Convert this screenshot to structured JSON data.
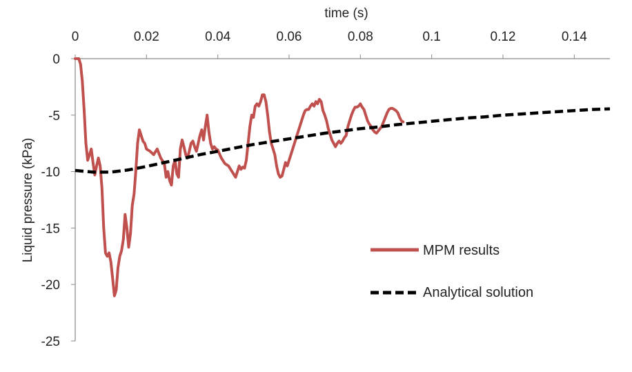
{
  "chart_data": {
    "type": "line",
    "title": "",
    "xlabel": "time (s)",
    "ylabel": "Liquid pressure (kPa)",
    "xlim": [
      0,
      0.15
    ],
    "ylim": [
      -25,
      0
    ],
    "x_ticks": [
      0,
      0.02,
      0.04,
      0.06,
      0.08,
      0.1,
      0.12,
      0.14
    ],
    "x_tick_labels": [
      "0",
      "0.02",
      "0.04",
      "0.06",
      "0.08",
      "0.1",
      "0.12",
      "0.14"
    ],
    "y_ticks": [
      0,
      -5,
      -10,
      -15,
      -20,
      -25
    ],
    "y_tick_labels": [
      "0",
      "-5",
      "-10",
      "-15",
      "-20",
      "-25"
    ],
    "x_axis_position": "top",
    "grid": false,
    "legend_position": "lower-right",
    "series": [
      {
        "name": "MPM results",
        "color": "#c0504d",
        "style": "solid",
        "points": [
          [
            0,
            0
          ],
          [
            0.001,
            0
          ],
          [
            0.0015,
            -0.5
          ],
          [
            0.002,
            -2
          ],
          [
            0.0025,
            -4.5
          ],
          [
            0.003,
            -7.5
          ],
          [
            0.0035,
            -9
          ],
          [
            0.004,
            -8.5
          ],
          [
            0.0045,
            -8
          ],
          [
            0.005,
            -9.2
          ],
          [
            0.0055,
            -10.3
          ],
          [
            0.006,
            -9.5
          ],
          [
            0.0065,
            -8.8
          ],
          [
            0.007,
            -9.5
          ],
          [
            0.0075,
            -11.5
          ],
          [
            0.008,
            -15
          ],
          [
            0.0085,
            -17.2
          ],
          [
            0.009,
            -17.5
          ],
          [
            0.0095,
            -17.2
          ],
          [
            0.01,
            -18
          ],
          [
            0.0105,
            -19.5
          ],
          [
            0.011,
            -21
          ],
          [
            0.0115,
            -20.5
          ],
          [
            0.012,
            -18.5
          ],
          [
            0.0125,
            -17.5
          ],
          [
            0.013,
            -17
          ],
          [
            0.0135,
            -16
          ],
          [
            0.014,
            -13.8
          ],
          [
            0.0145,
            -15
          ],
          [
            0.015,
            -16.7
          ],
          [
            0.0155,
            -15.5
          ],
          [
            0.016,
            -13
          ],
          [
            0.0165,
            -12
          ],
          [
            0.017,
            -10
          ],
          [
            0.0175,
            -7.5
          ],
          [
            0.018,
            -6.3
          ],
          [
            0.0185,
            -6.8
          ],
          [
            0.019,
            -7.3
          ],
          [
            0.0195,
            -7.5
          ],
          [
            0.02,
            -8
          ],
          [
            0.021,
            -8.2
          ],
          [
            0.022,
            -8.5
          ],
          [
            0.023,
            -8
          ],
          [
            0.024,
            -8.8
          ],
          [
            0.025,
            -9.3
          ],
          [
            0.0255,
            -10.5
          ],
          [
            0.026,
            -10
          ],
          [
            0.0265,
            -10.8
          ],
          [
            0.027,
            -11.2
          ],
          [
            0.0275,
            -9.5
          ],
          [
            0.028,
            -9
          ],
          [
            0.0285,
            -10.2
          ],
          [
            0.029,
            -10.5
          ],
          [
            0.0295,
            -8
          ],
          [
            0.03,
            -7.2
          ],
          [
            0.0305,
            -7.8
          ],
          [
            0.031,
            -8.5
          ],
          [
            0.0315,
            -8.8
          ],
          [
            0.032,
            -8.2
          ],
          [
            0.0325,
            -7.5
          ],
          [
            0.033,
            -7.3
          ],
          [
            0.0335,
            -7.8
          ],
          [
            0.034,
            -8.2
          ],
          [
            0.0345,
            -7.5
          ],
          [
            0.035,
            -6.8
          ],
          [
            0.0355,
            -6.3
          ],
          [
            0.036,
            -7.2
          ],
          [
            0.0365,
            -6
          ],
          [
            0.037,
            -5
          ],
          [
            0.0375,
            -6.5
          ],
          [
            0.038,
            -7.5
          ],
          [
            0.0385,
            -8
          ],
          [
            0.039,
            -7.8
          ],
          [
            0.0395,
            -8
          ],
          [
            0.04,
            -8.1
          ],
          [
            0.041,
            -8.8
          ],
          [
            0.042,
            -9.3
          ],
          [
            0.043,
            -9.5
          ],
          [
            0.044,
            -10
          ],
          [
            0.045,
            -10.5
          ],
          [
            0.0455,
            -10
          ],
          [
            0.046,
            -9.5
          ],
          [
            0.0465,
            -9.8
          ],
          [
            0.047,
            -9.6
          ],
          [
            0.0475,
            -9.7
          ],
          [
            0.048,
            -9
          ],
          [
            0.0485,
            -7.5
          ],
          [
            0.049,
            -6
          ],
          [
            0.0495,
            -5
          ],
          [
            0.05,
            -5.2
          ],
          [
            0.0505,
            -4.2
          ],
          [
            0.051,
            -4
          ],
          [
            0.0515,
            -4.2
          ],
          [
            0.052,
            -3.8
          ],
          [
            0.0525,
            -3.2
          ],
          [
            0.053,
            -3.2
          ],
          [
            0.0535,
            -3.8
          ],
          [
            0.054,
            -5
          ],
          [
            0.0545,
            -6.5
          ],
          [
            0.055,
            -7.5
          ],
          [
            0.0555,
            -8
          ],
          [
            0.056,
            -8.5
          ],
          [
            0.0565,
            -9.5
          ],
          [
            0.057,
            -10.2
          ],
          [
            0.0575,
            -10.5
          ],
          [
            0.058,
            -10.4
          ],
          [
            0.0585,
            -9.8
          ],
          [
            0.059,
            -9.2
          ],
          [
            0.0595,
            -9.5
          ],
          [
            0.06,
            -9
          ],
          [
            0.0605,
            -8.5
          ],
          [
            0.061,
            -8
          ],
          [
            0.0615,
            -7.5
          ],
          [
            0.062,
            -7
          ],
          [
            0.0625,
            -6.5
          ],
          [
            0.063,
            -6
          ],
          [
            0.0635,
            -5.5
          ],
          [
            0.064,
            -5
          ],
          [
            0.0645,
            -4.6
          ],
          [
            0.065,
            -4.5
          ],
          [
            0.0655,
            -4.5
          ],
          [
            0.066,
            -4.2
          ],
          [
            0.0665,
            -4
          ],
          [
            0.067,
            -4.2
          ],
          [
            0.0675,
            -3.8
          ],
          [
            0.068,
            -4
          ],
          [
            0.0685,
            -3.6
          ],
          [
            0.069,
            -3.8
          ],
          [
            0.0695,
            -4.6
          ],
          [
            0.07,
            -5
          ],
          [
            0.0705,
            -5.5
          ],
          [
            0.071,
            -6.2
          ],
          [
            0.0715,
            -6.7
          ],
          [
            0.072,
            -7.2
          ],
          [
            0.0725,
            -7.5
          ],
          [
            0.073,
            -7.8
          ],
          [
            0.0735,
            -7.5
          ],
          [
            0.074,
            -7.3
          ],
          [
            0.0745,
            -7.5
          ],
          [
            0.075,
            -7.3
          ],
          [
            0.0755,
            -7
          ],
          [
            0.076,
            -6.8
          ],
          [
            0.0765,
            -6
          ],
          [
            0.077,
            -5.5
          ],
          [
            0.0775,
            -5
          ],
          [
            0.078,
            -4.6
          ],
          [
            0.0785,
            -4.3
          ],
          [
            0.079,
            -4.3
          ],
          [
            0.0795,
            -4.2
          ],
          [
            0.08,
            -4
          ],
          [
            0.0805,
            -4.3
          ],
          [
            0.081,
            -4.5
          ],
          [
            0.0815,
            -5
          ],
          [
            0.082,
            -5.5
          ],
          [
            0.0825,
            -5.8
          ],
          [
            0.083,
            -6
          ],
          [
            0.0835,
            -6.3
          ],
          [
            0.084,
            -6.5
          ],
          [
            0.0845,
            -6.6
          ],
          [
            0.085,
            -6.4
          ],
          [
            0.0855,
            -6.2
          ],
          [
            0.086,
            -6
          ],
          [
            0.0865,
            -5.6
          ],
          [
            0.087,
            -5.2
          ],
          [
            0.0875,
            -4.8
          ],
          [
            0.088,
            -4.5
          ],
          [
            0.0885,
            -4.4
          ],
          [
            0.089,
            -4.4
          ],
          [
            0.0895,
            -4.5
          ],
          [
            0.09,
            -4.6
          ],
          [
            0.0905,
            -4.8
          ],
          [
            0.091,
            -5.2
          ],
          [
            0.0915,
            -5.5
          ],
          [
            0.092,
            -5.6
          ]
        ]
      },
      {
        "name": "Analytical solution",
        "color": "#000000",
        "style": "dashed",
        "points": [
          [
            0,
            -9.9
          ],
          [
            0.005,
            -10.05
          ],
          [
            0.01,
            -10.05
          ],
          [
            0.015,
            -9.85
          ],
          [
            0.02,
            -9.55
          ],
          [
            0.025,
            -9.2
          ],
          [
            0.03,
            -8.85
          ],
          [
            0.035,
            -8.5
          ],
          [
            0.04,
            -8.2
          ],
          [
            0.045,
            -7.9
          ],
          [
            0.05,
            -7.6
          ],
          [
            0.055,
            -7.35
          ],
          [
            0.06,
            -7.1
          ],
          [
            0.065,
            -6.85
          ],
          [
            0.07,
            -6.6
          ],
          [
            0.075,
            -6.4
          ],
          [
            0.08,
            -6.2
          ],
          [
            0.085,
            -6.05
          ],
          [
            0.09,
            -5.85
          ],
          [
            0.095,
            -5.7
          ],
          [
            0.1,
            -5.55
          ],
          [
            0.105,
            -5.4
          ],
          [
            0.11,
            -5.25
          ],
          [
            0.115,
            -5.15
          ],
          [
            0.12,
            -5
          ],
          [
            0.125,
            -4.9
          ],
          [
            0.13,
            -4.8
          ],
          [
            0.135,
            -4.7
          ],
          [
            0.14,
            -4.6
          ],
          [
            0.145,
            -4.5
          ],
          [
            0.15,
            -4.45
          ]
        ]
      }
    ]
  }
}
